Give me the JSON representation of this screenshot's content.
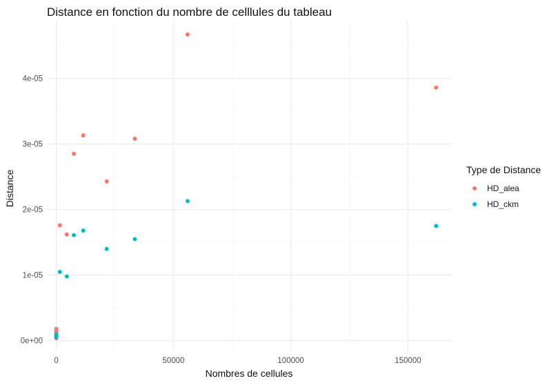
{
  "chart_data": {
    "type": "scatter",
    "title": "Distance en fonction du nombre de celllules du tableau",
    "xlabel": "Nombres de cellules",
    "ylabel": "Distance",
    "xlim": [
      -4000,
      169000
    ],
    "ylim": [
      -1.5e-06,
      4.88e-05
    ],
    "x_ticks": [
      0,
      50000,
      100000,
      150000
    ],
    "x_tick_labels": [
      "0",
      "50000",
      "100000",
      "150000"
    ],
    "y_ticks": [
      0,
      1e-05,
      2e-05,
      3e-05,
      4e-05
    ],
    "y_tick_labels": [
      "0e+00",
      "1e-05",
      "2e-05",
      "3e-05",
      "4e-05"
    ],
    "grid": true,
    "legend": {
      "title": "Type de Distance",
      "position": "right"
    },
    "series": [
      {
        "name": "HD_alea",
        "color": "#F8766D",
        "x": [
          0,
          0,
          0,
          0,
          0,
          0,
          1500,
          4500,
          7500,
          11500,
          21500,
          33500,
          56000,
          162000
        ],
        "y": [
          4e-07,
          7e-07,
          1.1e-06,
          1.3e-06,
          1.6e-06,
          1.8e-06,
          1.76e-05,
          1.62e-05,
          2.85e-05,
          3.13e-05,
          2.43e-05,
          3.08e-05,
          4.67e-05,
          3.86e-05
        ]
      },
      {
        "name": "HD_ckm",
        "color": "#00BFC4",
        "x": [
          0,
          0,
          0,
          1500,
          4500,
          7500,
          11500,
          21500,
          33500,
          56000,
          162000
        ],
        "y": [
          5e-07,
          8e-07,
          1e-06,
          1.05e-05,
          9.8e-06,
          1.61e-05,
          1.68e-05,
          1.4e-05,
          1.55e-05,
          2.13e-05,
          1.75e-05
        ]
      }
    ]
  }
}
